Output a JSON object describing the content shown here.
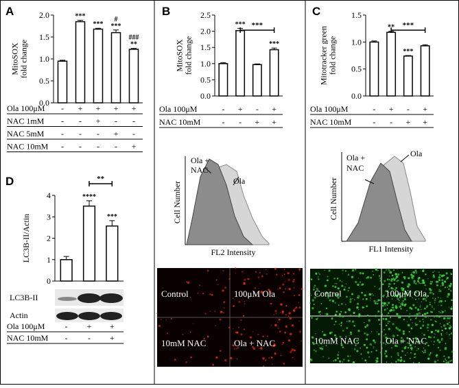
{
  "chart_data": [
    {
      "type": "bar",
      "panel": "A",
      "ylabel": [
        "MitoSOX",
        "fold change"
      ],
      "categories": [
        null,
        null,
        null,
        null,
        null
      ],
      "values": [
        0.95,
        1.85,
        1.68,
        1.6,
        1.22
      ],
      "errors": [
        0.02,
        0.03,
        0.02,
        0.06,
        0.02
      ],
      "annotations": [
        null,
        [
          "***"
        ],
        [
          "***"
        ],
        [
          "#",
          "***"
        ],
        [
          "###",
          "**"
        ]
      ],
      "ylim": [
        0,
        2.0
      ],
      "yticks": [
        {
          "value": 0,
          "label": "0.0"
        },
        0.5,
        {
          "value": 1,
          "label": "1.0"
        },
        1.5,
        {
          "value": 2,
          "label": "2.0"
        }
      ],
      "color": "#ffffff",
      "rows": [
        {
          "label": "Ola 100μM",
          "signs": [
            "-",
            "+",
            "+",
            "+",
            "+"
          ]
        },
        {
          "label": "NAC 1mM",
          "signs": [
            "-",
            "-",
            "+",
            "-",
            "-"
          ]
        },
        {
          "label": "NAC 5mM",
          "signs": [
            "-",
            "-",
            "-",
            "+",
            "-"
          ]
        },
        {
          "label": "NAC 10mM",
          "signs": [
            "-",
            "-",
            "-",
            "-",
            "+"
          ]
        }
      ]
    },
    {
      "type": "bar",
      "panel": "B",
      "ylabel": [
        "MitoSOX",
        "fold change"
      ],
      "categories": [
        null,
        null,
        null,
        null
      ],
      "values": [
        1.0,
        2.02,
        0.97,
        1.43
      ],
      "errors": [
        0.03,
        0.07,
        0.02,
        0.05
      ],
      "annotations": [
        null,
        [
          "***"
        ],
        null,
        [
          "***"
        ]
      ],
      "bracket": {
        "from": 1,
        "to": 3,
        "label": "***"
      },
      "ylim": [
        0,
        2.5
      ],
      "yticks": [
        {
          "value": 0,
          "label": "0.0"
        },
        0.5,
        {
          "value": 1,
          "label": "1.0"
        },
        1.5,
        {
          "value": 2,
          "label": "2.0"
        },
        2.5
      ],
      "color": "#ffffff",
      "rows": [
        {
          "label": "Ola 100μM",
          "signs": [
            "-",
            "+",
            "-",
            "+"
          ]
        },
        {
          "label": "NAC 10mM",
          "signs": [
            "-",
            "-",
            "+",
            "+"
          ]
        }
      ]
    },
    {
      "type": "bar",
      "panel": "C",
      "ylabel": [
        "Mitotracker green",
        "fold change"
      ],
      "categories": [
        null,
        null,
        null,
        null
      ],
      "values": [
        1.0,
        1.18,
        0.74,
        0.93
      ],
      "errors": [
        0.02,
        0.02,
        0.01,
        0.02
      ],
      "annotations": [
        null,
        [
          "**"
        ],
        [
          "***"
        ],
        null
      ],
      "bracket": {
        "from": 1,
        "to": 3,
        "label": "***"
      },
      "ylim": [
        0,
        1.5
      ],
      "yticks": [
        {
          "value": 0,
          "label": "0.0"
        },
        0.5,
        {
          "value": 1,
          "label": "1.0"
        },
        1.5
      ],
      "color": "#ffffff",
      "rows": [
        {
          "label": "Ola 100μM",
          "signs": [
            "-",
            "+",
            "-",
            "+"
          ]
        },
        {
          "label": "NAC 10mM",
          "signs": [
            "-",
            "-",
            "+",
            "+"
          ]
        }
      ]
    },
    {
      "type": "bar",
      "panel": "D",
      "ylabel": [
        "LC3B-II/Actin"
      ],
      "categories": [
        null,
        null,
        null
      ],
      "values": [
        1.0,
        3.5,
        2.57
      ],
      "errors": [
        0.15,
        0.25,
        0.25
      ],
      "annotations": [
        null,
        [
          "****"
        ],
        [
          "***"
        ]
      ],
      "bracket": {
        "from": 1,
        "to": 2,
        "label": "**"
      },
      "ylim": [
        0,
        4
      ],
      "yticks": [
        0,
        1,
        2,
        3,
        4
      ],
      "color": "#ffffff",
      "blots": [
        "LC3B-II",
        "Actin"
      ],
      "rows": [
        {
          "label": "Ola 100μM",
          "signs": [
            "-",
            "+",
            "+"
          ]
        },
        {
          "label": "NAC 10mM",
          "signs": [
            "-",
            "-",
            "+"
          ]
        }
      ]
    }
  ],
  "flow_cytometry": [
    {
      "ylabel": "Cell Number",
      "xlabel": "FL2 Intensity",
      "labels": [
        "Ola +",
        "NAC",
        "Ola"
      ]
    },
    {
      "ylabel": "Cell Number",
      "xlabel": "FL1 Intensity",
      "labels": [
        "Ola +",
        "NAC",
        "Ola"
      ]
    }
  ],
  "micrographs": [
    {
      "labels": [
        "Control",
        "100μM Ola",
        "10mM NAC",
        "Ola + NAC"
      ]
    },
    {
      "labels": [
        "Control",
        "100μM Ola",
        "10mM NAC",
        "Ola + NAC"
      ]
    }
  ]
}
